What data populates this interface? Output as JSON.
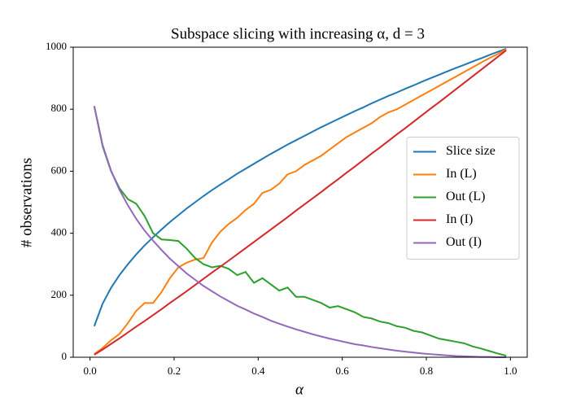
{
  "chart_data": {
    "type": "line",
    "title": "Subspace slicing with increasing α, d = 3",
    "x_label": "α",
    "y_label": "# observations",
    "x": [
      0.01,
      0.03,
      0.05,
      0.07,
      0.09,
      0.11,
      0.13,
      0.15,
      0.17,
      0.19,
      0.21,
      0.23,
      0.25,
      0.27,
      0.29,
      0.31,
      0.33,
      0.35,
      0.37,
      0.39,
      0.41,
      0.43,
      0.45,
      0.47,
      0.49,
      0.51,
      0.53,
      0.55,
      0.57,
      0.59,
      0.61,
      0.63,
      0.65,
      0.67,
      0.69,
      0.71,
      0.73,
      0.75,
      0.77,
      0.79,
      0.81,
      0.83,
      0.85,
      0.87,
      0.89,
      0.91,
      0.93,
      0.95,
      0.97,
      0.99
    ],
    "series": [
      {
        "name": "Slice size",
        "color": "#1f77b4",
        "values": [
          100,
          173,
          224,
          265,
          300,
          332,
          361,
          387,
          412,
          436,
          458,
          480,
          500,
          520,
          539,
          557,
          574,
          592,
          608,
          624,
          640,
          656,
          671,
          686,
          700,
          714,
          728,
          742,
          755,
          768,
          781,
          794,
          806,
          819,
          831,
          843,
          854,
          866,
          877,
          889,
          900,
          911,
          922,
          933,
          943,
          954,
          964,
          975,
          985,
          995
        ]
      },
      {
        "name": "In (L)",
        "color": "#ff7f0e",
        "values": [
          10,
          30,
          55,
          75,
          110,
          150,
          175,
          175,
          210,
          255,
          290,
          305,
          315,
          320,
          370,
          405,
          430,
          450,
          475,
          495,
          530,
          540,
          560,
          590,
          600,
          620,
          635,
          650,
          670,
          690,
          710,
          725,
          740,
          755,
          775,
          790,
          800,
          815,
          830,
          845,
          860,
          875,
          890,
          905,
          920,
          935,
          950,
          965,
          978,
          993
        ]
      },
      {
        "name": "Out (L)",
        "color": "#2ca02c",
        "values": [
          810,
          680,
          600,
          545,
          510,
          495,
          455,
          400,
          380,
          378,
          375,
          350,
          320,
          300,
          290,
          295,
          285,
          265,
          275,
          240,
          255,
          235,
          215,
          225,
          195,
          195,
          185,
          175,
          160,
          165,
          155,
          145,
          130,
          125,
          115,
          110,
          100,
          95,
          85,
          80,
          70,
          60,
          55,
          50,
          45,
          35,
          28,
          20,
          12,
          5
        ]
      },
      {
        "name": "In (I)",
        "color": "#d62728",
        "values": [
          8,
          25,
          43,
          61,
          80,
          99,
          117,
          136,
          155,
          175,
          194,
          213,
          233,
          253,
          273,
          292,
          312,
          332,
          352,
          372,
          392,
          412,
          432,
          452,
          473,
          493,
          513,
          533,
          554,
          574,
          595,
          615,
          636,
          657,
          677,
          698,
          719,
          739,
          760,
          781,
          802,
          822,
          843,
          864,
          885,
          906,
          927,
          948,
          969,
          990
        ]
      },
      {
        "name": "Out (I)",
        "color": "#9467bd",
        "values": [
          810,
          684,
          602,
          540,
          490,
          446,
          408,
          376,
          346,
          318,
          294,
          270,
          250,
          230,
          213,
          196,
          181,
          166,
          154,
          141,
          130,
          118,
          108,
          99,
          90,
          82,
          74,
          67,
          60,
          54,
          48,
          42,
          38,
          33,
          29,
          25,
          21,
          18,
          15,
          12,
          10,
          8,
          6,
          4,
          3,
          2,
          1,
          1,
          0,
          0
        ]
      }
    ],
    "xlim": [
      -0.04,
      1.04
    ],
    "ylim": [
      0,
      1000
    ],
    "xticks": [
      {
        "value": 0,
        "label": "0.0"
      },
      {
        "value": 0.2,
        "label": "0.2"
      },
      {
        "value": 0.4,
        "label": "0.4"
      },
      {
        "value": 0.6,
        "label": "0.6"
      },
      {
        "value": 0.8,
        "label": "0.8"
      },
      {
        "value": 1,
        "label": "1.0"
      }
    ],
    "yticks": [
      0,
      200,
      400,
      600,
      800,
      1000
    ],
    "legend": "right"
  }
}
